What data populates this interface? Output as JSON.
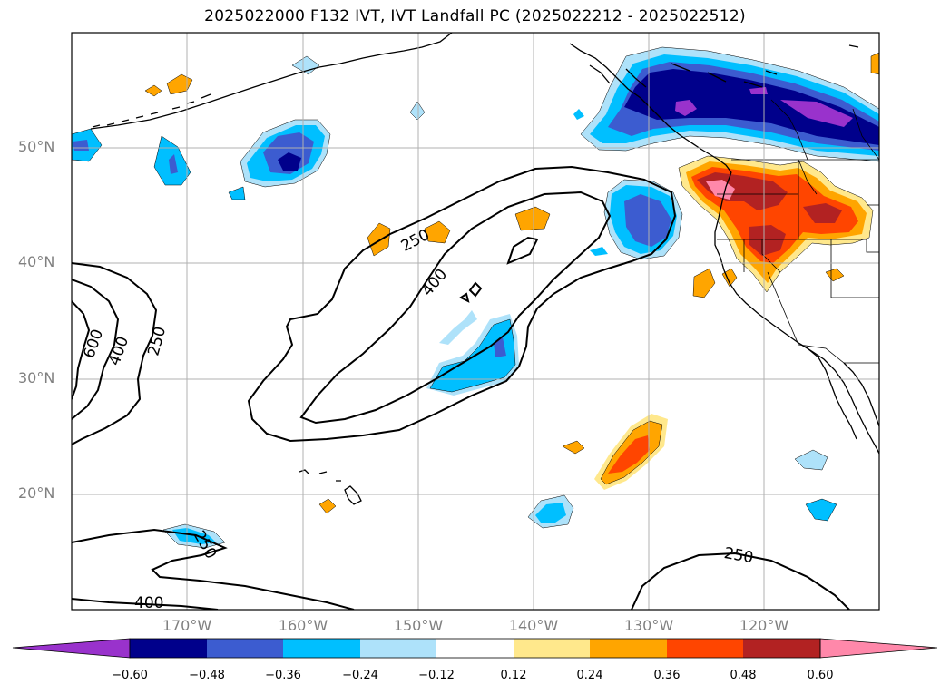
{
  "title": "2025022000 F132 IVT, IVT Landfall PC (2025022212 - 2025022512)",
  "lat_labels": [
    "50°N",
    "40°N",
    "30°N",
    "20°N"
  ],
  "lon_labels": [
    "170°W",
    "160°W",
    "150°W",
    "140°W",
    "130°W",
    "120°W"
  ],
  "contour_labels": [
    "250",
    "400",
    "600",
    "400",
    "250",
    "250",
    "400",
    "250"
  ],
  "colorbar": {
    "ticks": [
      "−0.60",
      "−0.48",
      "−0.36",
      "−0.24",
      "−0.12",
      "0.12",
      "0.24",
      "0.36",
      "0.48",
      "0.60"
    ],
    "colors": [
      "#9932cc",
      "#00008b",
      "#3c5cd0",
      "#00bfff",
      "#aee2fa",
      "#ffffff",
      "#ffe88c",
      "#ffa500",
      "#ff4500",
      "#b22222",
      "#ff88aa"
    ]
  }
}
